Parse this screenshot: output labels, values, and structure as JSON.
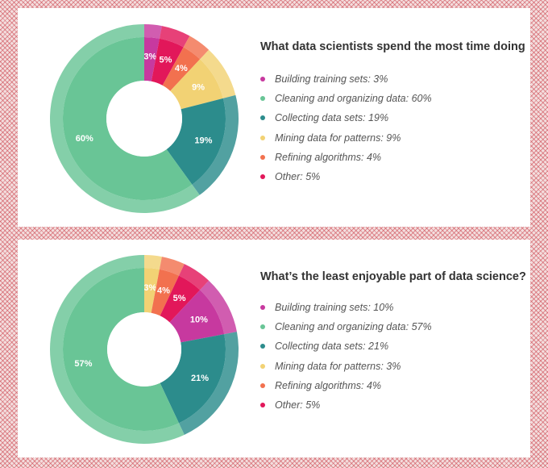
{
  "chart_data": [
    {
      "type": "pie",
      "title": "What data scientists spend the most time doing",
      "categories": [
        "Building training sets",
        "Cleaning and organizing data",
        "Collecting data sets",
        "Mining data for patterns",
        "Refining algorithms",
        "Other"
      ],
      "values": [
        3,
        60,
        19,
        9,
        4,
        5
      ],
      "slice_labels": [
        "3%",
        "60%",
        "19%",
        "9%",
        "4%",
        "5%"
      ],
      "legend_labels": [
        "Building training sets: 3%",
        "Cleaning and organizing data: 60%",
        "Collecting data sets: 19%",
        "Mining data for patterns: 9%",
        "Refining algorithms: 4%",
        "Other: 5%"
      ],
      "colors": [
        "#c7399f",
        "#69c596",
        "#2c8c8c",
        "#f2d274",
        "#f2714f",
        "#e2175a"
      ],
      "legend_placement": "right"
    },
    {
      "type": "pie",
      "title": "What’s the least enjoyable part of data science?",
      "categories": [
        "Building training sets",
        "Cleaning and organizing data",
        "Collecting data sets",
        "Mining data for patterns",
        "Refining algorithms",
        "Other"
      ],
      "values": [
        10,
        57,
        21,
        3,
        4,
        5
      ],
      "slice_labels": [
        "10%",
        "57%",
        "21%",
        "3%",
        "4%",
        "5%"
      ],
      "legend_labels": [
        "Building training sets: 10%",
        "Cleaning and organizing data: 57%",
        "Collecting data sets: 21%",
        "Mining data for patterns: 3%",
        "Refining algorithms: 4%",
        "Other: 5%"
      ],
      "colors": [
        "#c7399f",
        "#69c596",
        "#2c8c8c",
        "#f2d274",
        "#f2714f",
        "#e2175a"
      ],
      "legend_placement": "right"
    }
  ]
}
